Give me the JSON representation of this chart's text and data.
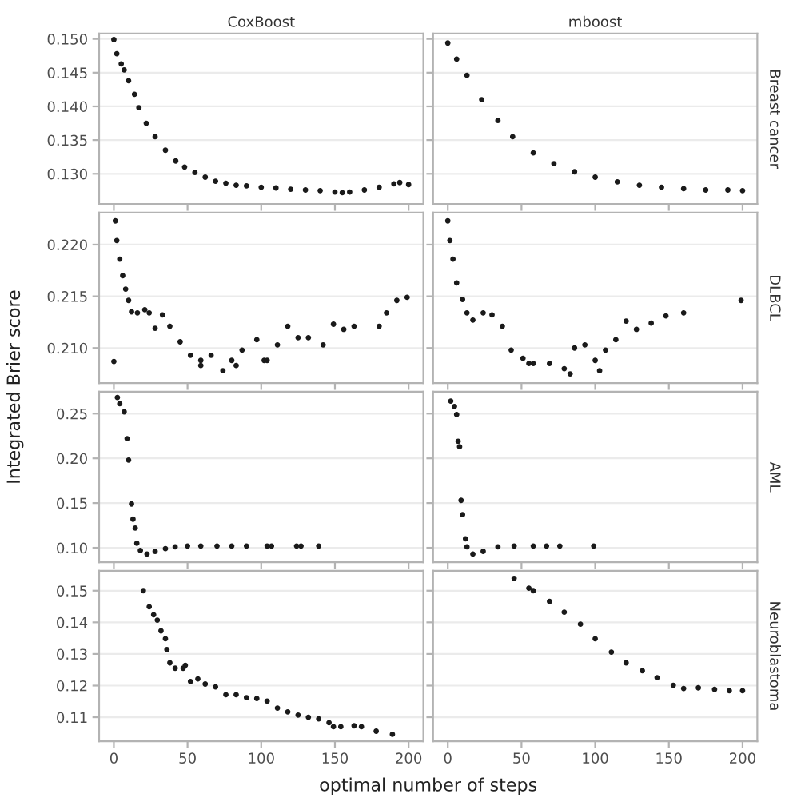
{
  "chart_data": [
    {
      "type": "scatter",
      "title": "CoxBoost",
      "ylabel": "Integrated Brier score",
      "tick_labels": "y",
      "grid": "y",
      "marker": "circle",
      "xlim": [
        -10,
        210
      ],
      "xticks": [
        0,
        50,
        100,
        150,
        200
      ],
      "ylim": [
        0.1255,
        0.1508
      ],
      "yticks": [
        {
          "value": 0.13,
          "label": "0.130"
        },
        {
          "value": 0.135,
          "label": "0.135"
        },
        {
          "value": 0.14,
          "label": "0.140"
        },
        {
          "value": 0.145,
          "label": "0.145"
        },
        {
          "value": 0.15,
          "label": "0.150"
        }
      ],
      "series": [
        {
          "color": "#1a1a1a",
          "x": [
            0,
            2,
            5,
            7,
            10,
            14,
            17,
            22,
            28,
            35,
            42,
            48,
            55,
            62,
            69,
            76,
            83,
            90,
            100,
            110,
            120,
            130,
            140,
            150,
            155,
            160,
            170,
            180,
            190,
            194,
            200
          ],
          "values": [
            0.1499,
            0.1478,
            0.1463,
            0.1454,
            0.1438,
            0.1418,
            0.1398,
            0.1375,
            0.1355,
            0.1335,
            0.1319,
            0.131,
            0.1302,
            0.1295,
            0.1289,
            0.1286,
            0.1283,
            0.1282,
            0.128,
            0.1279,
            0.1277,
            0.1276,
            0.1275,
            0.1273,
            0.1272,
            0.1273,
            0.1276,
            0.128,
            0.1285,
            0.1287,
            0.1284
          ]
        }
      ]
    },
    {
      "type": "scatter",
      "title": "mboost",
      "y2label": "Breast cancer",
      "tick_labels": false,
      "grid": "y",
      "marker": "circle",
      "xlim": [
        -10,
        210
      ],
      "xticks": [
        0,
        50,
        100,
        150,
        200
      ],
      "ylim": [
        0.1255,
        0.1508
      ],
      "yticks": [
        0.13,
        0.135,
        0.14,
        0.145,
        0.15
      ],
      "series": [
        {
          "color": "#1a1a1a",
          "x": [
            0,
            6,
            13,
            23,
            34,
            44,
            58,
            72,
            86,
            100,
            115,
            130,
            145,
            160,
            175,
            190,
            200
          ],
          "values": [
            0.1494,
            0.147,
            0.1446,
            0.141,
            0.1379,
            0.1355,
            0.1331,
            0.1315,
            0.1303,
            0.1295,
            0.1288,
            0.1283,
            0.128,
            0.1278,
            0.1276,
            0.1276,
            0.1275
          ]
        }
      ]
    },
    {
      "type": "scatter",
      "tick_labels": "y",
      "grid": "y",
      "marker": "circle",
      "xlim": [
        -10,
        210
      ],
      "xticks": [
        0,
        50,
        100,
        150,
        200
      ],
      "ylim": [
        0.2066,
        0.2231
      ],
      "yticks": [
        {
          "value": 0.21,
          "label": "0.210"
        },
        0.215,
        {
          "value": 0.22,
          "label": "0.220"
        }
      ],
      "series": [
        {
          "color": "#1a1a1a",
          "x": [
            0,
            1,
            2,
            4,
            6,
            8,
            10,
            12,
            16,
            21,
            24,
            28,
            33,
            38,
            45,
            52,
            59,
            59,
            66,
            74,
            80,
            83,
            87,
            97,
            102,
            104,
            111,
            118,
            125,
            132,
            142,
            149,
            156,
            163,
            180,
            185,
            192,
            199
          ],
          "values": [
            0.2087,
            0.2223,
            0.2204,
            0.2186,
            0.217,
            0.2157,
            0.2146,
            0.2135,
            0.2134,
            0.2137,
            0.2134,
            0.2119,
            0.2132,
            0.2121,
            0.2106,
            0.2093,
            0.2088,
            0.2083,
            0.2093,
            0.2078,
            0.2088,
            0.2083,
            0.2098,
            0.2108,
            0.2088,
            0.2088,
            0.2103,
            0.2121,
            0.211,
            0.211,
            0.2103,
            0.2123,
            0.2118,
            0.2121,
            0.2121,
            0.2134,
            0.2146,
            0.2149
          ]
        }
      ]
    },
    {
      "type": "scatter",
      "y2label": "DLBCL",
      "tick_labels": false,
      "grid": "y",
      "marker": "circle",
      "xlim": [
        -10,
        210
      ],
      "xticks": [
        0,
        50,
        100,
        150,
        200
      ],
      "ylim": [
        0.2066,
        0.2231
      ],
      "yticks": [
        0.21,
        0.215,
        0.22
      ],
      "series": [
        {
          "color": "#1a1a1a",
          "x": [
            0,
            1.4,
            3.5,
            6,
            10,
            13,
            17,
            24,
            30,
            37,
            43,
            51,
            55,
            58,
            69,
            79,
            83,
            86,
            93,
            100,
            103,
            107,
            114,
            121,
            128,
            138,
            148,
            160,
            199
          ],
          "values": [
            0.2223,
            0.2204,
            0.2186,
            0.2163,
            0.2147,
            0.2134,
            0.2127,
            0.2134,
            0.2132,
            0.2121,
            0.2098,
            0.209,
            0.2085,
            0.2085,
            0.2085,
            0.208,
            0.2075,
            0.21,
            0.2103,
            0.2088,
            0.2078,
            0.2098,
            0.2108,
            0.2126,
            0.2118,
            0.2124,
            0.2131,
            0.2134,
            0.2146
          ]
        }
      ]
    },
    {
      "type": "scatter",
      "tick_labels": "y",
      "grid": "y",
      "marker": "circle",
      "xlim": [
        -10,
        210
      ],
      "xticks": [
        0,
        50,
        100,
        150,
        200
      ],
      "ylim": [
        0.0838,
        0.2745
      ],
      "yticks": [
        {
          "value": 0.1,
          "label": "0.10"
        },
        0.15,
        {
          "value": 0.2,
          "label": "0.20"
        },
        0.25
      ],
      "series": [
        {
          "color": "#1a1a1a",
          "x": [
            2.4,
            4,
            7,
            9,
            10,
            12,
            13,
            14.5,
            15.6,
            18,
            22.5,
            28,
            35,
            41.6,
            50,
            59,
            70,
            80,
            90,
            104,
            107,
            124,
            127,
            139
          ],
          "values": [
            0.268,
            0.261,
            0.252,
            0.222,
            0.198,
            0.149,
            0.132,
            0.122,
            0.105,
            0.097,
            0.093,
            0.096,
            0.099,
            0.101,
            0.102,
            0.102,
            0.102,
            0.102,
            0.102,
            0.102,
            0.102,
            0.102,
            0.102,
            0.102
          ]
        }
      ]
    },
    {
      "type": "scatter",
      "y2label": "AML",
      "tick_labels": false,
      "grid": "y",
      "marker": "circle",
      "xlim": [
        -10,
        210
      ],
      "xticks": [
        0,
        50,
        100,
        150,
        200
      ],
      "ylim": [
        0.0838,
        0.2745
      ],
      "yticks": [
        0.1,
        0.15,
        0.2,
        0.25
      ],
      "series": [
        {
          "color": "#1a1a1a",
          "x": [
            2,
            4.5,
            6,
            7,
            8,
            9,
            10,
            12,
            13,
            17,
            24,
            34,
            45,
            58,
            67,
            76,
            99
          ],
          "values": [
            0.264,
            0.258,
            0.249,
            0.219,
            0.213,
            0.153,
            0.137,
            0.11,
            0.101,
            0.093,
            0.096,
            0.101,
            0.102,
            0.102,
            0.102,
            0.102,
            0.102
          ]
        }
      ]
    },
    {
      "type": "scatter",
      "xlabel": "optimal number of steps",
      "grid": "y",
      "marker": "circle",
      "xlim": [
        -10,
        210
      ],
      "xticks": [
        0,
        50,
        100,
        150,
        200
      ],
      "ylim": [
        0.1024,
        0.1563
      ],
      "yticks": [
        0.11,
        0.12,
        0.13,
        0.14,
        0.15
      ],
      "series": [
        {
          "color": "#1a1a1a",
          "x": [
            20,
            24,
            27,
            29.5,
            32,
            35,
            36,
            38,
            41.6,
            47,
            48.5,
            52,
            57,
            62,
            69,
            76,
            83,
            90,
            97,
            104,
            111,
            118,
            125,
            132,
            139,
            146,
            149,
            154,
            163,
            168,
            178,
            189
          ],
          "values": [
            0.15,
            0.1449,
            0.1424,
            0.1407,
            0.1373,
            0.1348,
            0.1314,
            0.1272,
            0.1255,
            0.1255,
            0.1264,
            0.1213,
            0.1221,
            0.1205,
            0.1196,
            0.1171,
            0.1171,
            0.1162,
            0.1159,
            0.1151,
            0.1129,
            0.1117,
            0.1107,
            0.11,
            0.1095,
            0.1083,
            0.107,
            0.107,
            0.1073,
            0.107,
            0.1056,
            0.1046
          ]
        }
      ]
    },
    {
      "type": "scatter",
      "y2label": "Neuroblastoma",
      "tick_labels": "x",
      "grid": "y",
      "marker": "circle",
      "xlim": [
        -10,
        210
      ],
      "xticks": [
        0,
        50,
        100,
        150,
        200
      ],
      "ylim": [
        0.1024,
        0.1563
      ],
      "yticks": [
        0.11,
        0.12,
        0.13,
        0.14,
        0.15
      ],
      "series": [
        {
          "color": "#1a1a1a",
          "x": [
            45,
            55,
            58,
            69,
            79,
            90,
            100,
            111,
            121,
            132,
            142,
            153,
            160,
            170,
            181,
            191,
            200
          ],
          "values": [
            0.1539,
            0.1508,
            0.15,
            0.1466,
            0.1432,
            0.1394,
            0.1348,
            0.1306,
            0.1272,
            0.1247,
            0.1225,
            0.1201,
            0.1191,
            0.1193,
            0.1188,
            0.1184,
            0.1184
          ]
        }
      ]
    }
  ]
}
